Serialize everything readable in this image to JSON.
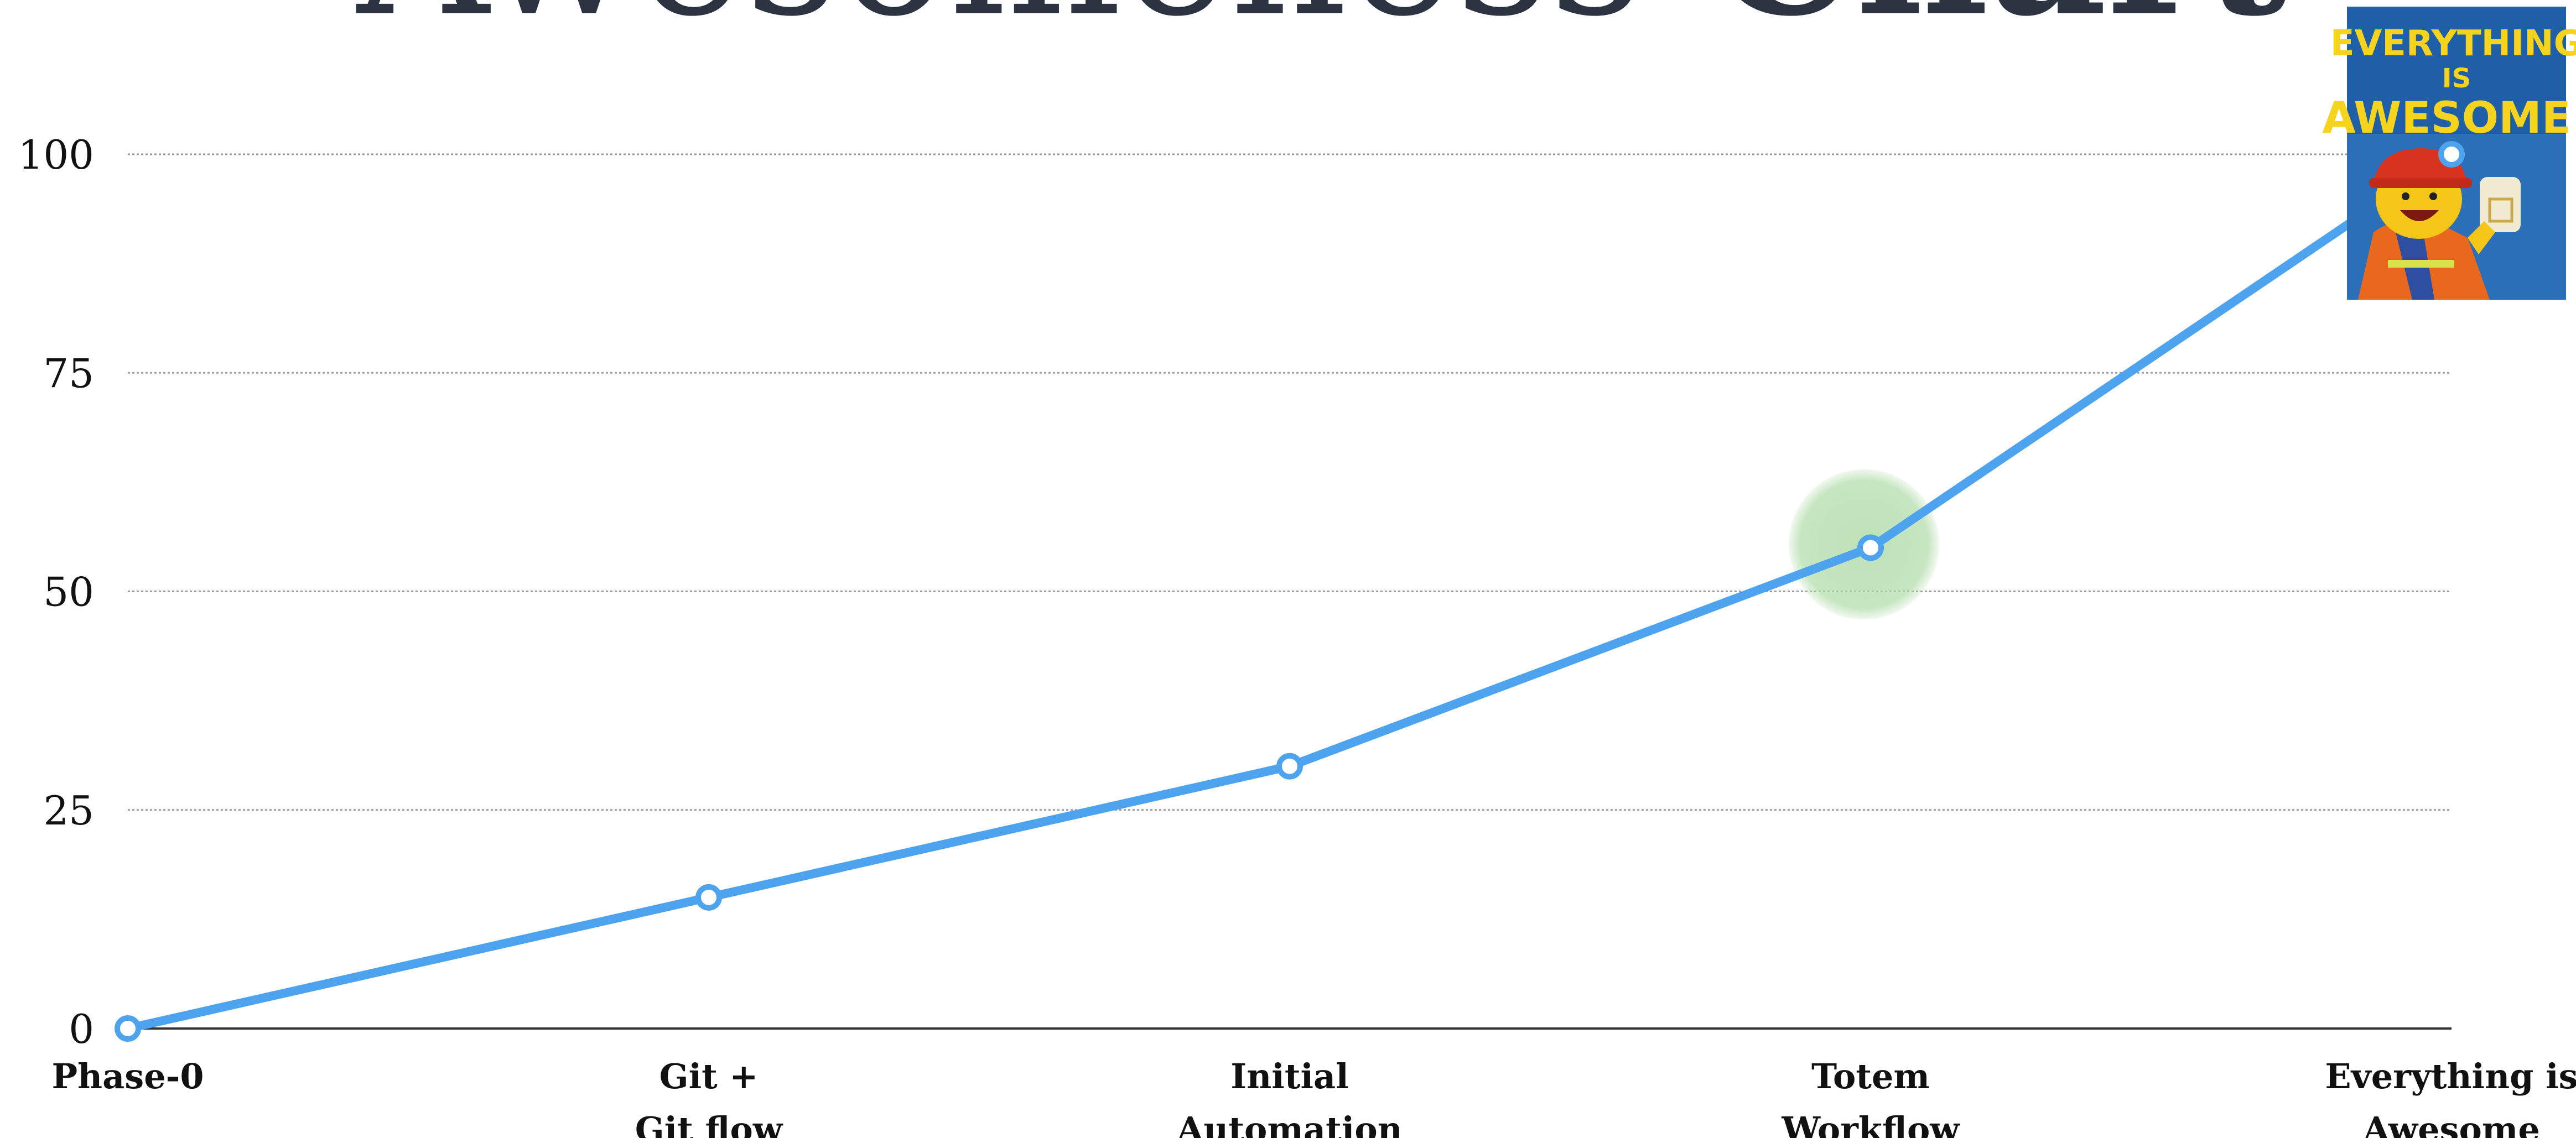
{
  "chart_data": {
    "type": "line",
    "title": {
      "normal": "Awesomeness",
      "bold": "Chart"
    },
    "categories": [
      [
        "Phase-0"
      ],
      [
        "Git +",
        "Git flow"
      ],
      [
        "Initial",
        "Automation"
      ],
      [
        "Totem",
        "Workflow"
      ],
      [
        "Everything is",
        "Awesome"
      ]
    ],
    "series": [
      {
        "values": [
          0,
          15,
          30,
          55,
          100
        ],
        "color": "#4ea3ef"
      }
    ],
    "ylim": [
      0,
      100
    ],
    "yticks": [
      0,
      25,
      50,
      75,
      100
    ],
    "grid": true,
    "highlight": {
      "index": 3,
      "color": "#a8d8a0"
    },
    "poster": {
      "line1": "EVERYTHING",
      "line2": "IS",
      "line3": "AWESOME!",
      "colors": {
        "background": "#2a6fb8",
        "text": "#f6d31c"
      }
    }
  }
}
